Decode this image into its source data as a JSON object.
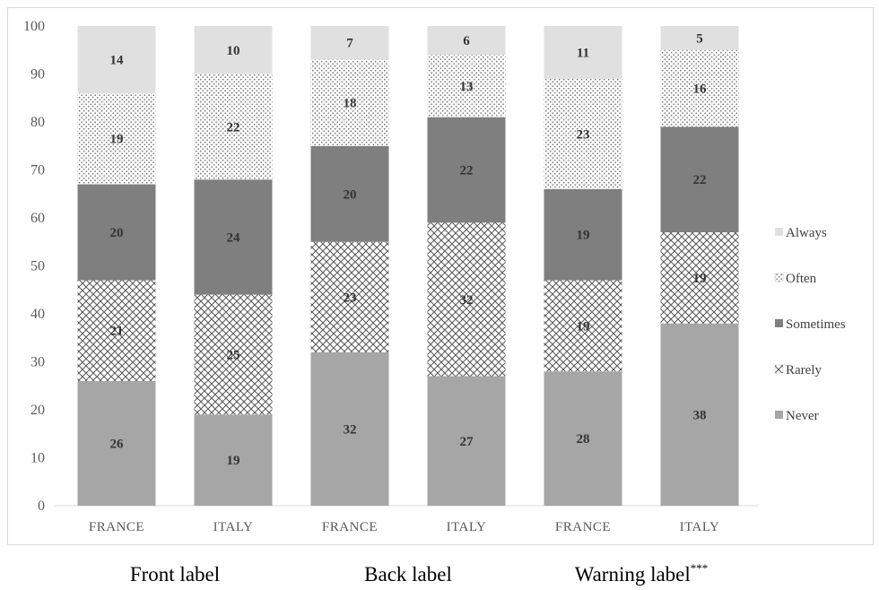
{
  "chart_data": {
    "type": "bar",
    "stacked": true,
    "categories": [
      "FRANCE",
      "ITALY",
      "FRANCE",
      "ITALY",
      "FRANCE",
      "ITALY"
    ],
    "groups": [
      {
        "label": "Front label",
        "suffix": ""
      },
      {
        "label": "Back label",
        "suffix": ""
      },
      {
        "label": "Warning label",
        "suffix": "***"
      }
    ],
    "series": [
      {
        "name": "Never",
        "values": [
          26,
          19,
          32,
          27,
          28,
          38
        ],
        "color": "#a6a6a6",
        "pattern": "solid"
      },
      {
        "name": "Rarely",
        "values": [
          21,
          25,
          23,
          32,
          19,
          19
        ],
        "color": "#ffffff",
        "pattern": "crosshatch"
      },
      {
        "name": "Sometimes",
        "values": [
          20,
          24,
          20,
          22,
          19,
          22
        ],
        "color": "#7f7f7f",
        "pattern": "solid"
      },
      {
        "name": "Often",
        "values": [
          19,
          22,
          18,
          13,
          23,
          16
        ],
        "color": "#ffffff",
        "pattern": "dots"
      },
      {
        "name": "Always",
        "values": [
          14,
          10,
          7,
          6,
          11,
          5
        ],
        "color": "#e0e0e0",
        "pattern": "solid"
      }
    ],
    "ylim": [
      0,
      100
    ],
    "yticks": [
      "0",
      "10",
      "20",
      "30",
      "40",
      "50",
      "60",
      "70",
      "80",
      "90",
      "100"
    ],
    "legend_position": "right",
    "grid": false
  }
}
